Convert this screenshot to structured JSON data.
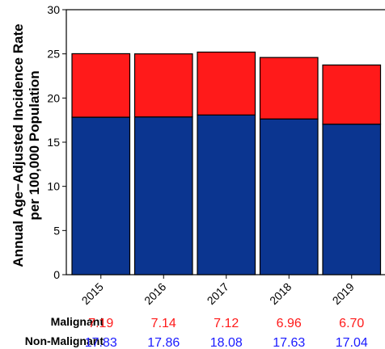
{
  "chart_data": {
    "type": "bar",
    "stacked": true,
    "categories": [
      "2015",
      "2016",
      "2017",
      "2018",
      "2019"
    ],
    "series": [
      {
        "name": "Non-Malignant",
        "color": "#0b3590",
        "values": [
          17.83,
          17.86,
          18.08,
          17.63,
          17.04
        ]
      },
      {
        "name": "Malignant",
        "color": "#ff1a1a",
        "values": [
          7.19,
          7.14,
          7.12,
          6.96,
          6.7
        ]
      }
    ],
    "ylabel_lines": [
      "Annual Age−Adjusted Incidence Rate",
      "per 100,000 Population"
    ],
    "ylim": [
      0,
      30
    ],
    "yticks": [
      0,
      5,
      10,
      15,
      20,
      25,
      30
    ],
    "grid": false,
    "table": {
      "rows": [
        {
          "label": "Malignant",
          "color": "#ff1a1a",
          "values": [
            "7.19",
            "7.14",
            "7.12",
            "6.96",
            "6.70"
          ]
        },
        {
          "label": "Non-Malignant",
          "color": "#1a1aff",
          "values": [
            "17.83",
            "17.86",
            "18.08",
            "17.63",
            "17.04"
          ]
        }
      ]
    }
  }
}
